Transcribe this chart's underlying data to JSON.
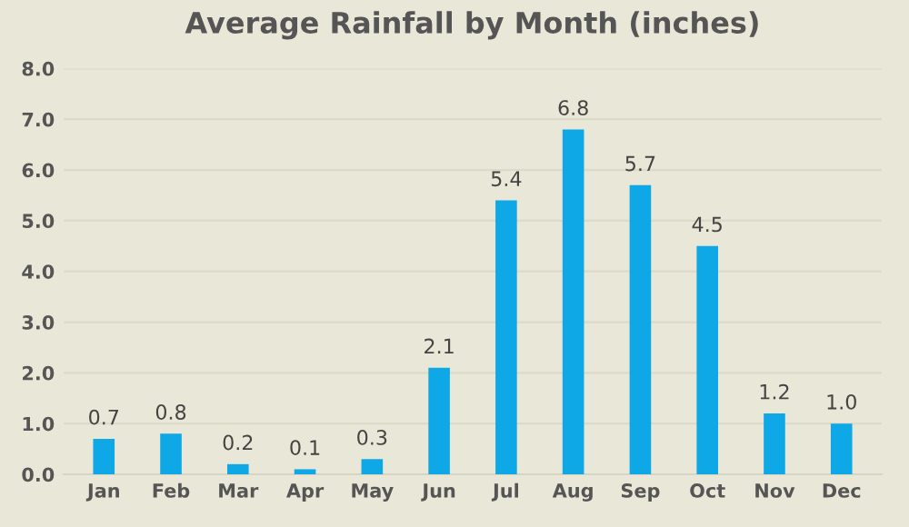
{
  "chart_data": {
    "type": "bar",
    "title": "Average Rainfall by Month (inches)",
    "categories": [
      "Jan",
      "Feb",
      "Mar",
      "Apr",
      "May",
      "Jun",
      "Jul",
      "Aug",
      "Sep",
      "Oct",
      "Nov",
      "Dec"
    ],
    "values": [
      0.7,
      0.8,
      0.2,
      0.1,
      0.3,
      2.1,
      5.4,
      6.8,
      5.7,
      4.5,
      1.2,
      1.0
    ],
    "color": "#0fa8e6",
    "ylim": [
      0,
      8
    ],
    "yticks": [
      {
        "value": 0,
        "label": "0.0"
      },
      {
        "value": 1,
        "label": "1.0"
      },
      {
        "value": 2,
        "label": "2.0"
      },
      {
        "value": 3,
        "label": "3.0"
      },
      {
        "value": 4,
        "label": "4.0"
      },
      {
        "value": 5,
        "label": "5.0"
      },
      {
        "value": 6,
        "label": "6.0"
      },
      {
        "value": 7,
        "label": "7.0"
      },
      {
        "value": 8,
        "label": "8.0"
      }
    ],
    "value_labels": [
      "0.7",
      "0.8",
      "0.2",
      "0.1",
      "0.3",
      "2.1",
      "5.4",
      "6.8",
      "5.7",
      "4.5",
      "1.2",
      "1.0"
    ],
    "grid": "y"
  }
}
